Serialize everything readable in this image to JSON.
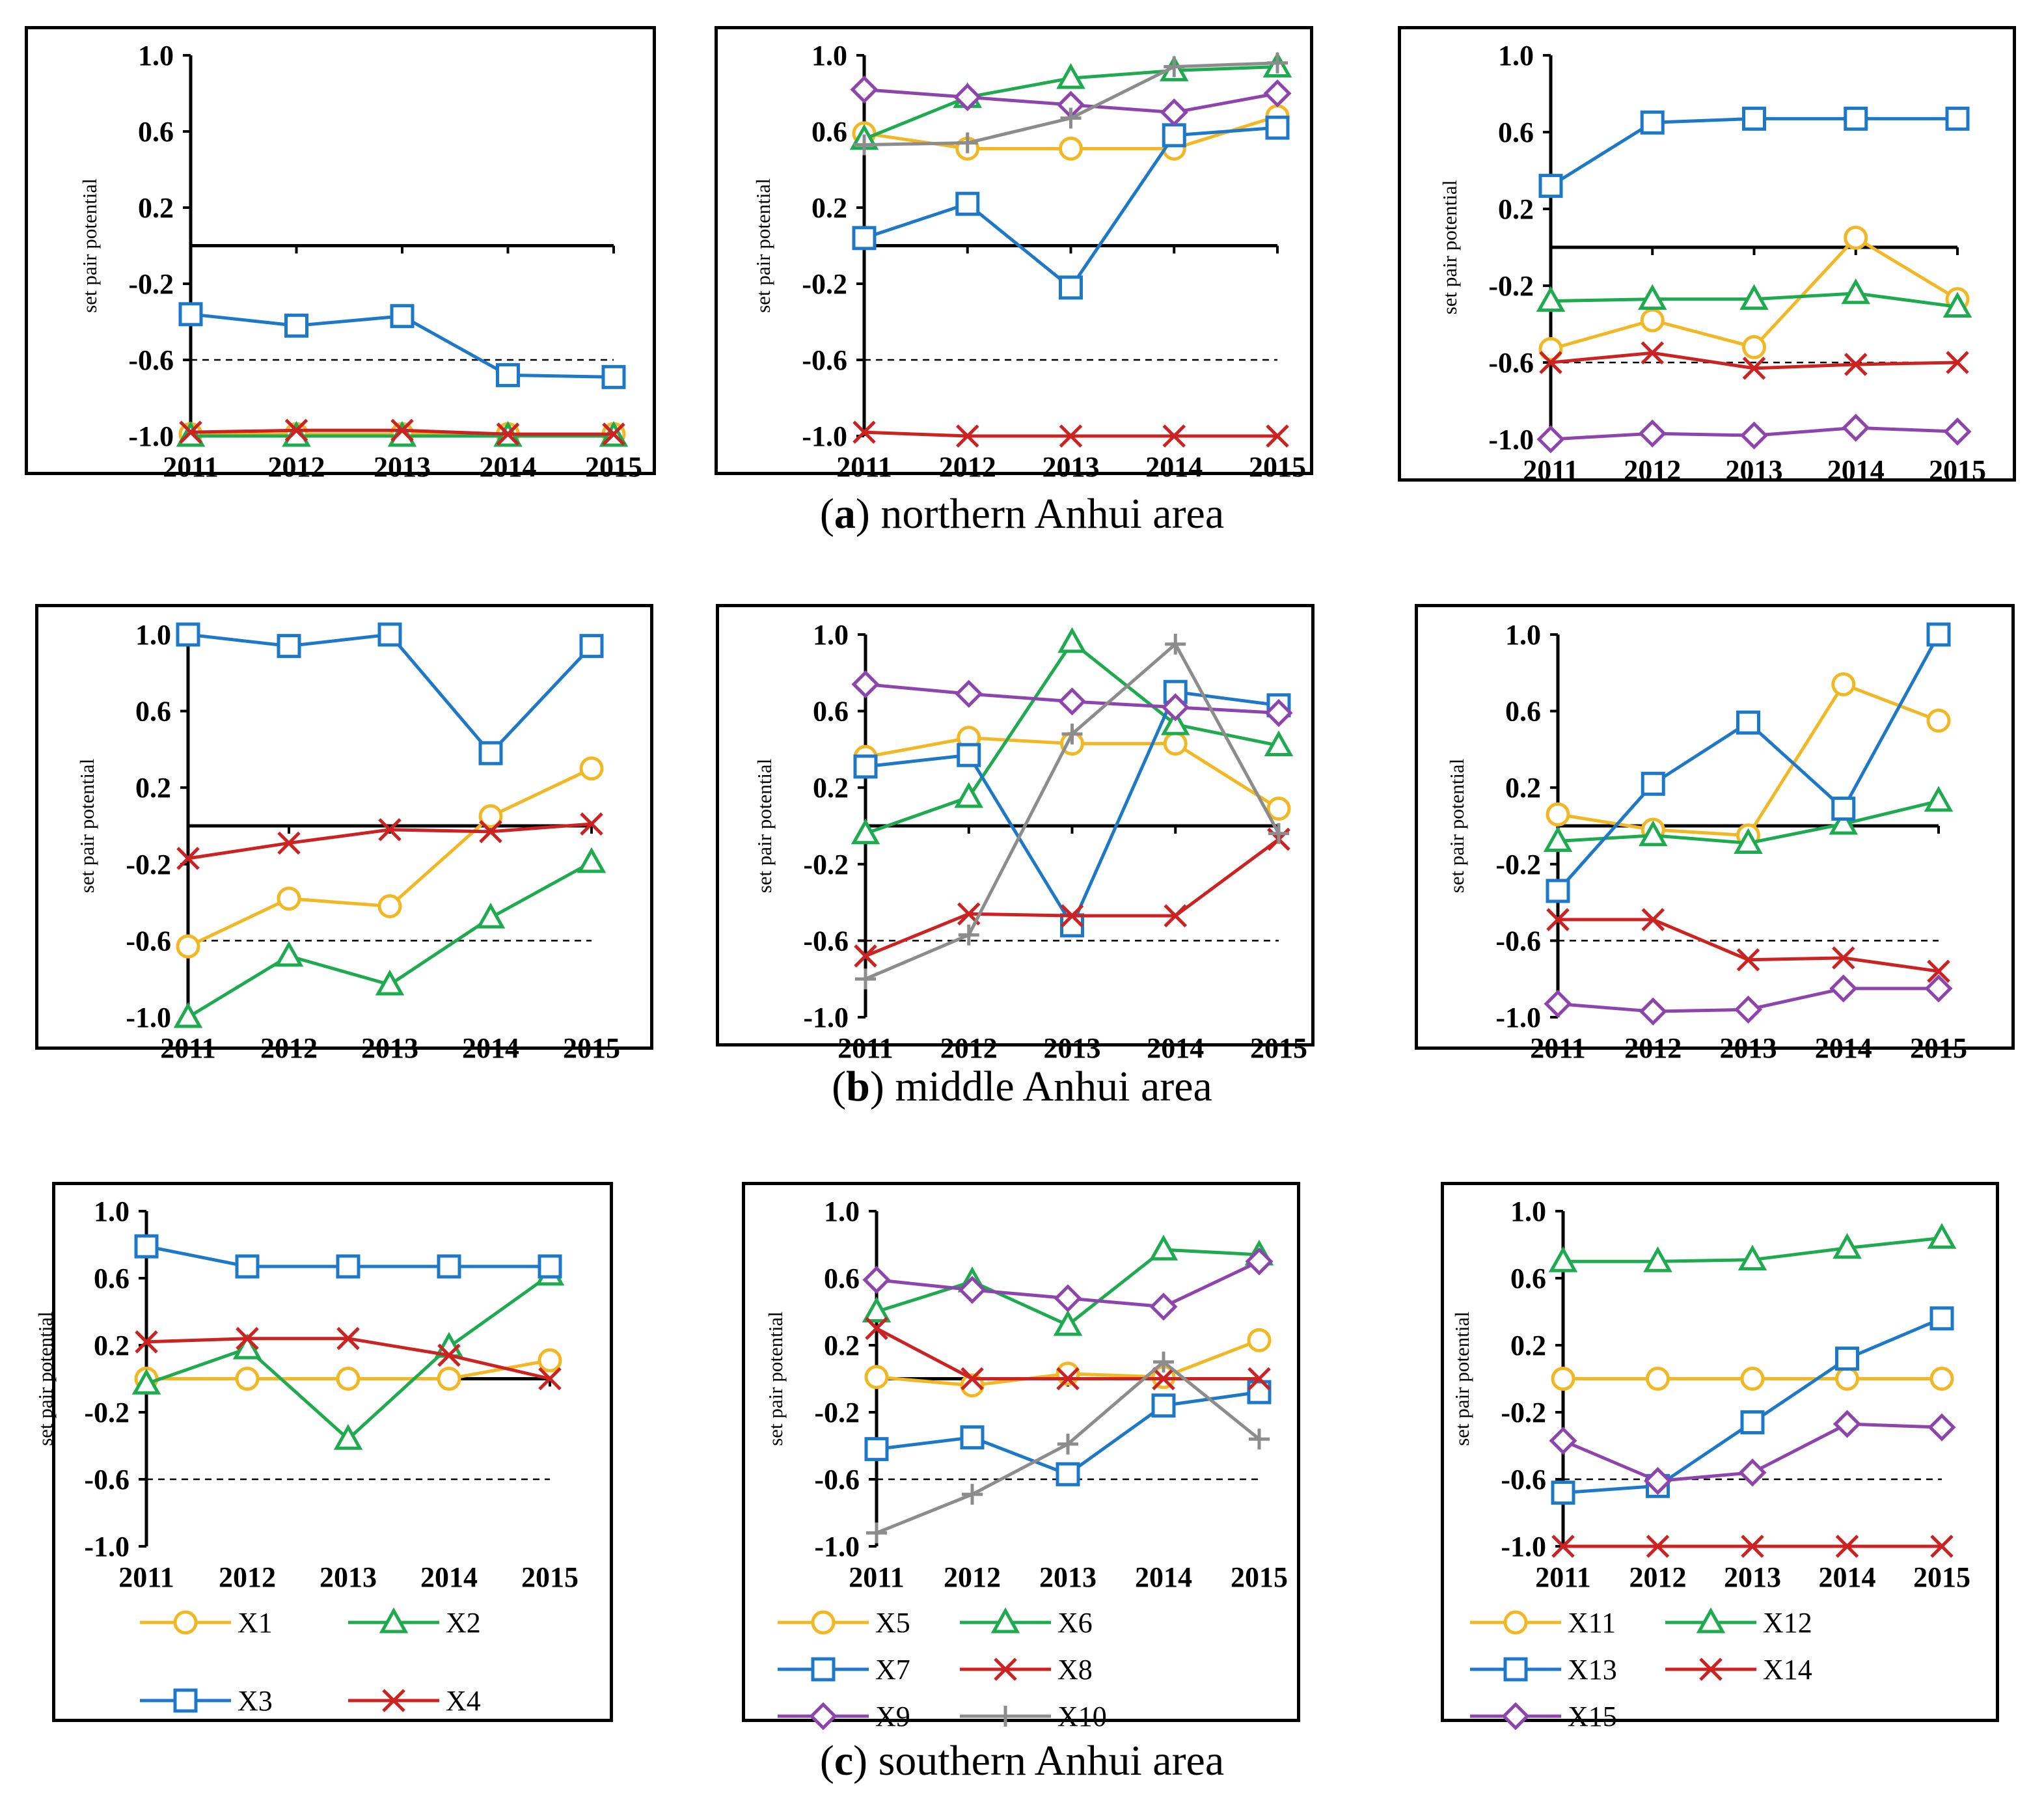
{
  "captions": [
    {
      "letter": "a",
      "text": " northern Anhui area"
    },
    {
      "letter": "b",
      "text": " middle Anhui area"
    },
    {
      "letter": "c",
      "text": " southern Anhui area"
    }
  ],
  "colors": {
    "X1": "#F2B824",
    "X2": "#1EAA4F",
    "X3": "#1E78C8",
    "X4": "#CC2222",
    "X5": "#F2B824",
    "X6": "#1EAA4F",
    "X7": "#1E78C8",
    "X8": "#CC2222",
    "X9": "#8E44AD",
    "X10": "#8C8C8C",
    "X11": "#F2B824",
    "X12": "#1EAA4F",
    "X13": "#1E78C8",
    "X14": "#CC2222",
    "X15": "#8E44AD"
  },
  "markers": {
    "X1": "circle",
    "X2": "triangle",
    "X3": "square",
    "X4": "x",
    "X5": "circle",
    "X6": "triangle",
    "X7": "square",
    "X8": "x",
    "X9": "diamond",
    "X10": "plus",
    "X11": "circle",
    "X12": "triangle",
    "X13": "square",
    "X14": "x",
    "X15": "diamond"
  },
  "chart_data": [
    {
      "id": "a1",
      "type": "line",
      "ylabel": "set pair potential",
      "categories": [
        "2011",
        "2012",
        "2013",
        "2014",
        "2015"
      ],
      "ylim": [
        -1.0,
        1.0
      ],
      "yticks": [
        "1.0",
        "0.6",
        "0.2",
        "-0.2",
        "-0.6",
        "-1.0"
      ],
      "threshold": -0.6,
      "series": [
        {
          "name": "X1",
          "values": [
            -0.99,
            -0.99,
            -0.99,
            -0.99,
            -0.99
          ]
        },
        {
          "name": "X2",
          "values": [
            -1.0,
            -1.0,
            -1.0,
            -1.0,
            -1.0
          ]
        },
        {
          "name": "X3",
          "values": [
            -0.36,
            -0.42,
            -0.37,
            -0.68,
            -0.69
          ]
        },
        {
          "name": "X4",
          "values": [
            -0.98,
            -0.97,
            -0.97,
            -0.99,
            -0.99
          ]
        }
      ]
    },
    {
      "id": "a2",
      "type": "line",
      "ylabel": "set pair potential",
      "categories": [
        "2011",
        "2012",
        "2013",
        "2014",
        "2015"
      ],
      "ylim": [
        -1.0,
        1.0
      ],
      "yticks": [
        "1.0",
        "0.6",
        "0.2",
        "-0.2",
        "-0.6",
        "-1.0"
      ],
      "threshold": -0.6,
      "series": [
        {
          "name": "X5",
          "values": [
            0.59,
            0.51,
            0.51,
            0.51,
            0.68
          ]
        },
        {
          "name": "X6",
          "values": [
            0.56,
            0.78,
            0.88,
            0.92,
            0.94
          ]
        },
        {
          "name": "X7",
          "values": [
            0.04,
            0.22,
            -0.22,
            0.58,
            0.62
          ]
        },
        {
          "name": "X8",
          "values": [
            -0.98,
            -1.0,
            -1.0,
            -1.0,
            -1.0
          ]
        },
        {
          "name": "X9",
          "values": [
            0.82,
            0.78,
            0.74,
            0.7,
            0.8
          ]
        },
        {
          "name": "X10",
          "values": [
            0.53,
            0.54,
            0.67,
            0.94,
            0.96
          ]
        }
      ]
    },
    {
      "id": "a3",
      "type": "line",
      "ylabel": "set pair potential",
      "categories": [
        "2011",
        "2012",
        "2013",
        "2014",
        "2015"
      ],
      "ylim": [
        -1.0,
        1.0
      ],
      "yticks": [
        "1.0",
        "0.6",
        "0.2",
        "-0.2",
        "-0.6",
        "-1.0"
      ],
      "threshold": -0.6,
      "series": [
        {
          "name": "X11",
          "values": [
            -0.53,
            -0.38,
            -0.52,
            0.05,
            -0.27
          ]
        },
        {
          "name": "X12",
          "values": [
            -0.28,
            -0.27,
            -0.27,
            -0.24,
            -0.31
          ]
        },
        {
          "name": "X13",
          "values": [
            0.32,
            0.65,
            0.67,
            0.67,
            0.67
          ]
        },
        {
          "name": "X14",
          "values": [
            -0.6,
            -0.55,
            -0.63,
            -0.61,
            -0.6
          ]
        },
        {
          "name": "X15",
          "values": [
            -1.0,
            -0.97,
            -0.98,
            -0.94,
            -0.96
          ]
        }
      ]
    },
    {
      "id": "b1",
      "type": "line",
      "ylabel": "set pair potential",
      "categories": [
        "2011",
        "2012",
        "2013",
        "2014",
        "2015"
      ],
      "ylim": [
        -1.0,
        1.0
      ],
      "yticks": [
        "1.0",
        "0.6",
        "0.2",
        "-0.2",
        "-0.6",
        "-1.0"
      ],
      "threshold": -0.6,
      "series": [
        {
          "name": "X1",
          "values": [
            -0.63,
            -0.38,
            -0.42,
            0.05,
            0.3
          ]
        },
        {
          "name": "X2",
          "values": [
            -1.0,
            -0.68,
            -0.83,
            -0.48,
            -0.19
          ]
        },
        {
          "name": "X3",
          "values": [
            1.0,
            0.94,
            1.0,
            0.38,
            0.94
          ]
        },
        {
          "name": "X4",
          "values": [
            -0.17,
            -0.09,
            -0.02,
            -0.03,
            0.01
          ]
        }
      ]
    },
    {
      "id": "b2",
      "type": "line",
      "ylabel": "set pair potential",
      "categories": [
        "2011",
        "2012",
        "2013",
        "2014",
        "2015"
      ],
      "ylim": [
        -1.0,
        1.0
      ],
      "yticks": [
        "1.0",
        "0.6",
        "0.2",
        "-0.2",
        "-0.6",
        "-1.0"
      ],
      "threshold": -0.6,
      "series": [
        {
          "name": "X5",
          "values": [
            0.36,
            0.46,
            0.43,
            0.43,
            0.09
          ]
        },
        {
          "name": "X6",
          "values": [
            -0.04,
            0.15,
            0.96,
            0.53,
            0.42
          ]
        },
        {
          "name": "X7",
          "values": [
            0.31,
            0.37,
            -0.52,
            0.7,
            0.63
          ]
        },
        {
          "name": "X8",
          "values": [
            -0.68,
            -0.46,
            -0.47,
            -0.47,
            -0.07
          ]
        },
        {
          "name": "X9",
          "values": [
            0.74,
            0.69,
            0.65,
            0.62,
            0.59
          ]
        },
        {
          "name": "X10",
          "values": [
            -0.8,
            -0.57,
            0.48,
            0.95,
            -0.04
          ]
        }
      ]
    },
    {
      "id": "b3",
      "type": "line",
      "ylabel": "set pair potential",
      "categories": [
        "2011",
        "2012",
        "2013",
        "2014",
        "2015"
      ],
      "ylim": [
        -1.0,
        1.0
      ],
      "yticks": [
        "1.0",
        "0.6",
        "0.2",
        "-0.2",
        "-0.6",
        "-1.0"
      ],
      "threshold": -0.6,
      "series": [
        {
          "name": "X11",
          "values": [
            0.06,
            -0.02,
            -0.05,
            0.74,
            0.55
          ]
        },
        {
          "name": "X12",
          "values": [
            -0.08,
            -0.05,
            -0.09,
            0.01,
            0.13
          ]
        },
        {
          "name": "X13",
          "values": [
            -0.34,
            0.22,
            0.54,
            0.09,
            1.0
          ]
        },
        {
          "name": "X14",
          "values": [
            -0.49,
            -0.49,
            -0.7,
            -0.69,
            -0.76
          ]
        },
        {
          "name": "X15",
          "values": [
            -0.93,
            -0.97,
            -0.96,
            -0.85,
            -0.85
          ]
        }
      ]
    },
    {
      "id": "c1",
      "type": "line",
      "ylabel": "set pair potential",
      "categories": [
        "2011",
        "2012",
        "2013",
        "2014",
        "2015"
      ],
      "ylim": [
        -1.0,
        1.0
      ],
      "yticks": [
        "1.0",
        "0.6",
        "0.2",
        "-0.2",
        "-0.6",
        "-1.0"
      ],
      "threshold": -0.6,
      "series": [
        {
          "name": "X1",
          "values": [
            0.0,
            0.0,
            0.0,
            0.0,
            0.11
          ]
        },
        {
          "name": "X2",
          "values": [
            -0.03,
            0.18,
            -0.36,
            0.19,
            0.62
          ]
        },
        {
          "name": "X3",
          "values": [
            0.79,
            0.67,
            0.67,
            0.67,
            0.67
          ]
        },
        {
          "name": "X4",
          "values": [
            0.22,
            0.24,
            0.24,
            0.14,
            0.0
          ]
        }
      ],
      "legend": {
        "columns": 2,
        "items": [
          "X1",
          "X2",
          "X3",
          "X4"
        ]
      }
    },
    {
      "id": "c2",
      "type": "line",
      "ylabel": "set pair potential",
      "categories": [
        "2011",
        "2012",
        "2013",
        "2014",
        "2015"
      ],
      "ylim": [
        -1.0,
        1.0
      ],
      "yticks": [
        "1.0",
        "0.6",
        "0.2",
        "-0.2",
        "-0.6",
        "-1.0"
      ],
      "threshold": -0.6,
      "series": [
        {
          "name": "X5",
          "values": [
            0.01,
            -0.04,
            0.03,
            0.01,
            0.23
          ]
        },
        {
          "name": "X6",
          "values": [
            0.4,
            0.58,
            0.32,
            0.77,
            0.74
          ]
        },
        {
          "name": "X7",
          "values": [
            -0.42,
            -0.35,
            -0.57,
            -0.16,
            -0.08
          ]
        },
        {
          "name": "X8",
          "values": [
            0.3,
            0.0,
            0.0,
            0.0,
            0.0
          ]
        },
        {
          "name": "X9",
          "values": [
            0.59,
            0.53,
            0.48,
            0.43,
            0.7
          ]
        },
        {
          "name": "X10",
          "values": [
            -0.92,
            -0.69,
            -0.39,
            0.1,
            -0.36
          ]
        }
      ],
      "legend": {
        "columns": 2,
        "items": [
          "X5",
          "X6",
          "X7",
          "X8",
          "X9",
          "X10"
        ]
      }
    },
    {
      "id": "c3",
      "type": "line",
      "ylabel": "set pair potential",
      "categories": [
        "2011",
        "2012",
        "2013",
        "2014",
        "2015"
      ],
      "ylim": [
        -1.0,
        1.0
      ],
      "yticks": [
        "1.0",
        "0.6",
        "0.2",
        "-0.2",
        "-0.6",
        "-1.0"
      ],
      "threshold": -0.6,
      "series": [
        {
          "name": "X11",
          "values": [
            0.0,
            0.0,
            0.0,
            0.0,
            0.0
          ]
        },
        {
          "name": "X12",
          "values": [
            0.7,
            0.7,
            0.71,
            0.78,
            0.84
          ]
        },
        {
          "name": "X13",
          "values": [
            -0.68,
            -0.64,
            -0.26,
            0.12,
            0.36
          ]
        },
        {
          "name": "X14",
          "values": [
            -1.0,
            -1.0,
            -1.0,
            -1.0,
            -1.0
          ]
        },
        {
          "name": "X15",
          "values": [
            -0.37,
            -0.61,
            -0.56,
            -0.27,
            -0.29
          ]
        }
      ],
      "legend": {
        "columns": 2,
        "items": [
          "X11",
          "X12",
          "X13",
          "X14",
          "X15"
        ]
      }
    }
  ]
}
